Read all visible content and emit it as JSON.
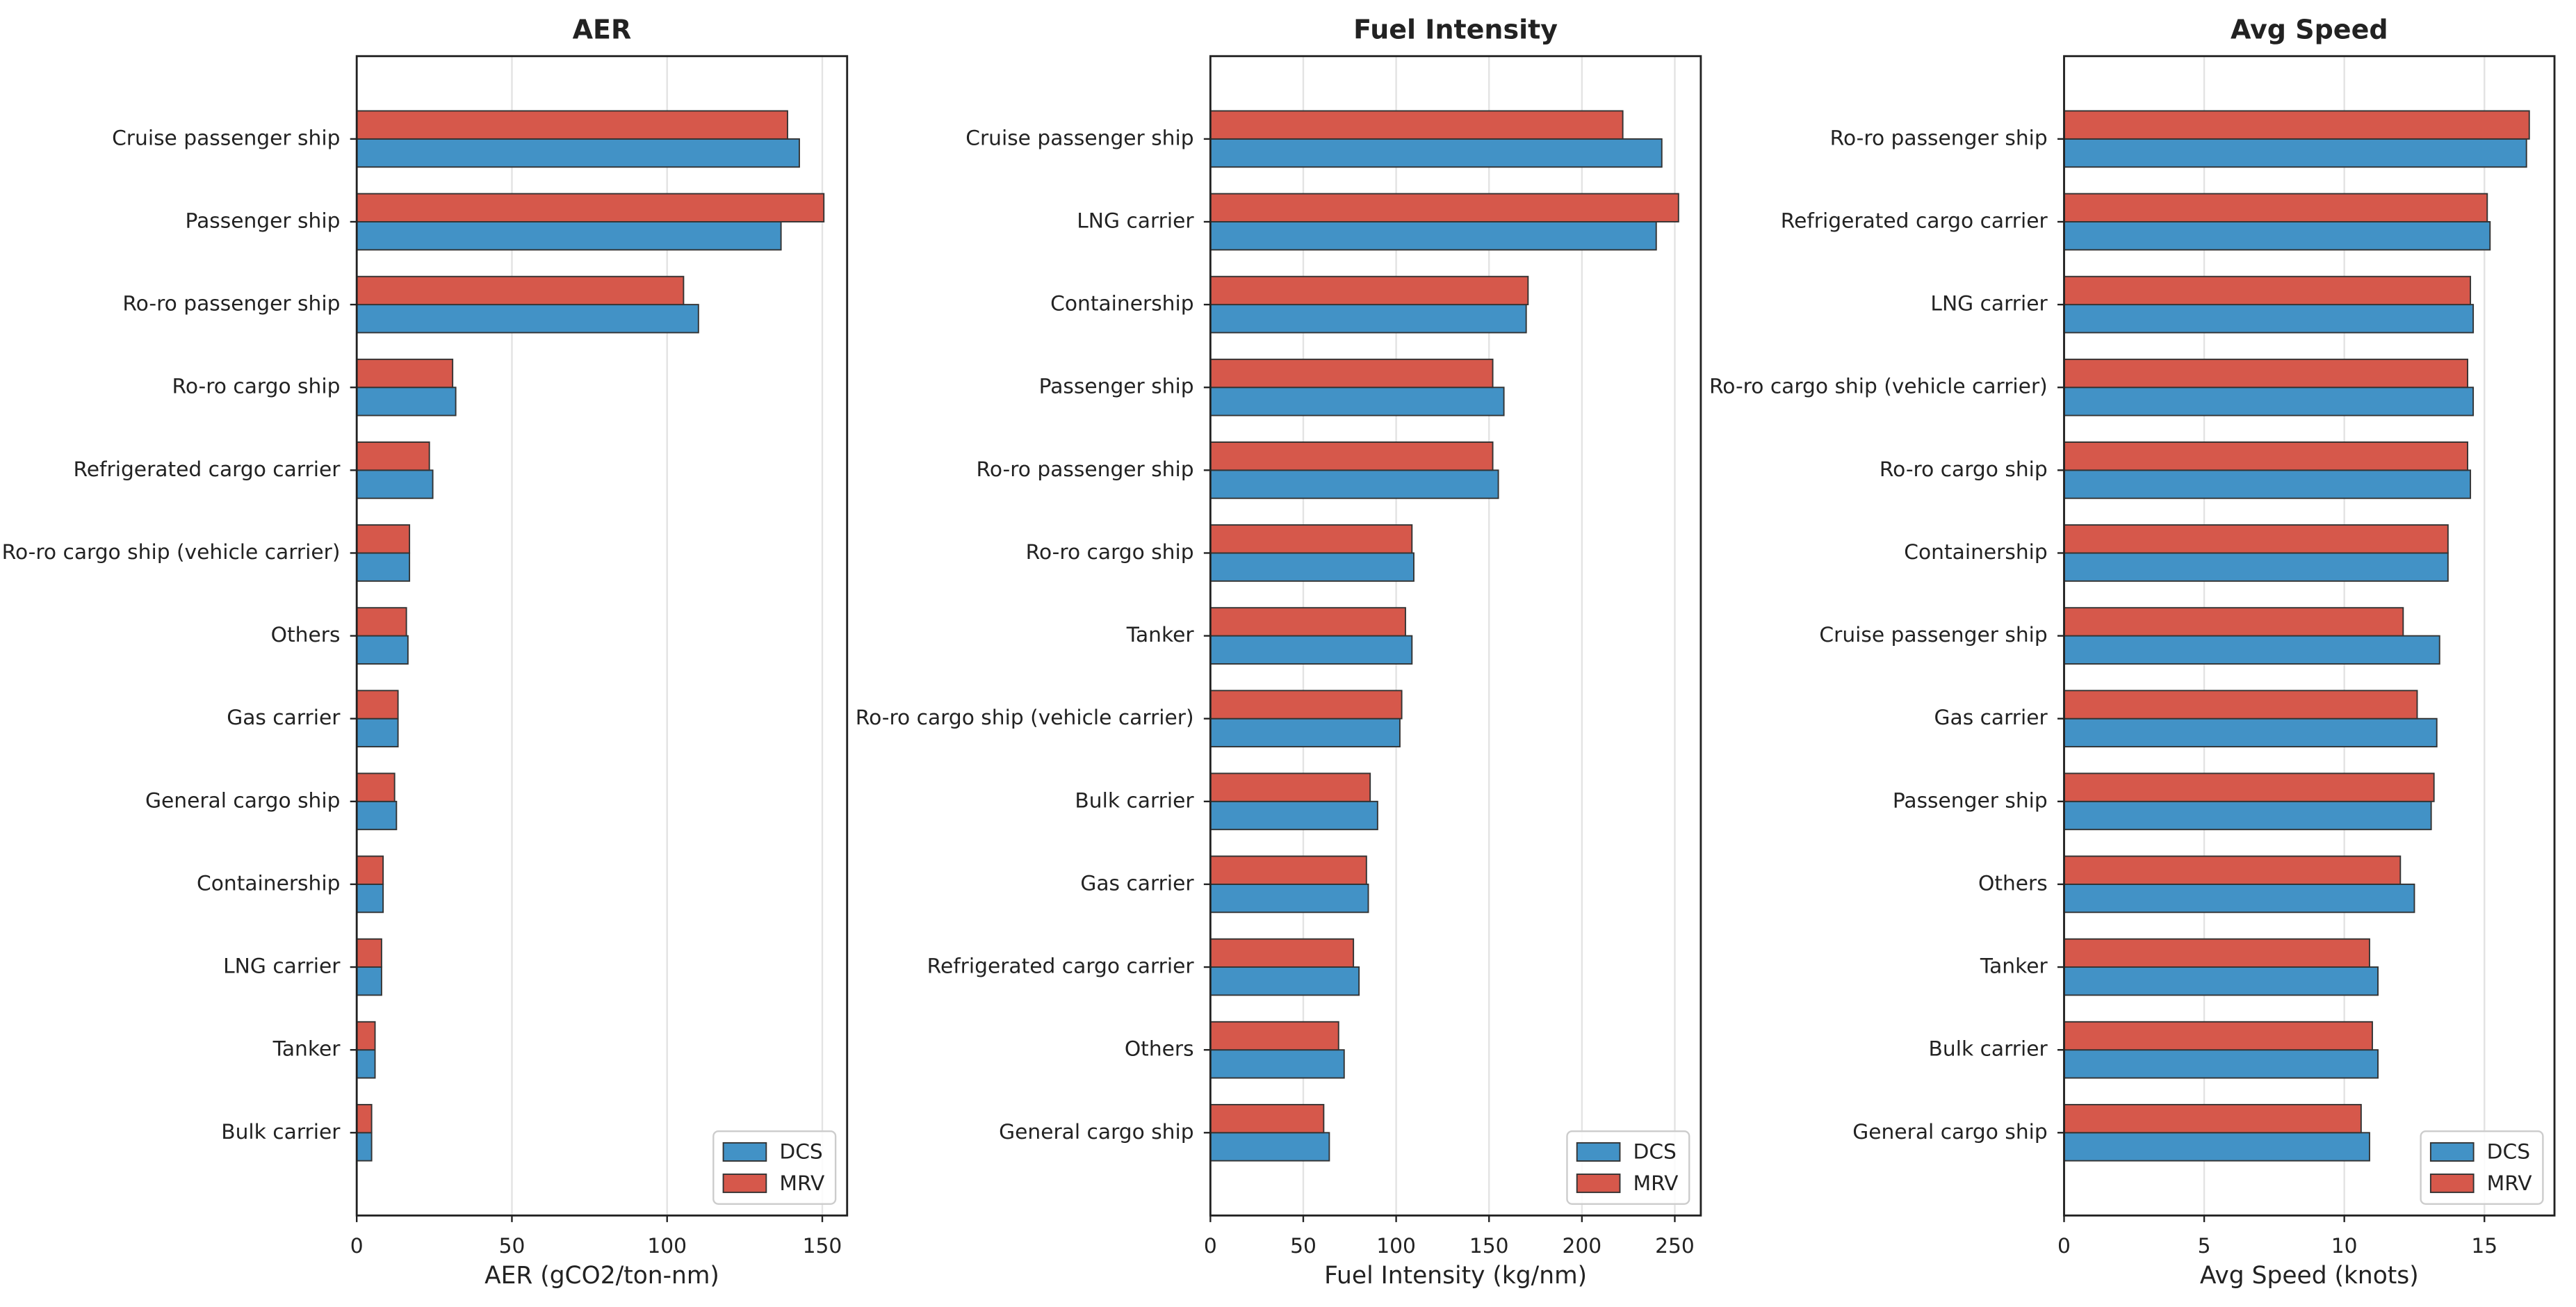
{
  "chart_data": [
    {
      "type": "bar",
      "orientation": "horizontal",
      "title": "AER",
      "xlabel": "AER (gCO2/ton-nm)",
      "categories": [
        "Cruise passenger ship",
        "Passenger ship",
        "Ro-ro passenger ship",
        "Ro-ro cargo ship",
        "Refrigerated cargo carrier",
        "Ro-ro cargo ship (vehicle carrier)",
        "Others",
        "Gas carrier",
        "General cargo ship",
        "Containership",
        "LNG carrier",
        "Tanker",
        "Bulk carrier"
      ],
      "series": [
        {
          "name": "DCS",
          "color": "#4292c6",
          "values": [
            142.6,
            136.7,
            110.1,
            31.9,
            24.5,
            17.0,
            16.5,
            13.3,
            12.8,
            8.5,
            8.0,
            5.9,
            4.8
          ]
        },
        {
          "name": "MRV",
          "color": "#d6584b",
          "values": [
            138.8,
            150.5,
            105.3,
            30.9,
            23.4,
            17.0,
            16.0,
            13.3,
            12.2,
            8.5,
            8.0,
            5.9,
            4.8
          ]
        }
      ],
      "xlim": [
        0,
        158
      ],
      "xticks": [
        0,
        50,
        100,
        150
      ],
      "grid": true,
      "legend": "lower right"
    },
    {
      "type": "bar",
      "orientation": "horizontal",
      "title": "Fuel Intensity",
      "xlabel": "Fuel Intensity (kg/nm)",
      "categories": [
        "Cruise passenger ship",
        "LNG carrier",
        "Containership",
        "Passenger ship",
        "Ro-ro passenger ship",
        "Ro-ro cargo ship",
        "Tanker",
        "Ro-ro cargo ship (vehicle carrier)",
        "Bulk carrier",
        "Gas carrier",
        "Refrigerated cargo carrier",
        "Others",
        "General cargo ship"
      ],
      "series": [
        {
          "name": "DCS",
          "color": "#4292c6",
          "values": [
            243,
            240,
            170,
            158,
            155,
            109.5,
            108.5,
            102,
            90,
            85,
            80,
            72,
            64
          ]
        },
        {
          "name": "MRV",
          "color": "#d6584b",
          "values": [
            222,
            252,
            171,
            152,
            152,
            108.5,
            105,
            103,
            86,
            84,
            77,
            69,
            61
          ]
        }
      ],
      "xlim": [
        0,
        264
      ],
      "xticks": [
        0,
        50,
        100,
        150,
        200,
        250
      ],
      "grid": true,
      "legend": "lower right"
    },
    {
      "type": "bar",
      "orientation": "horizontal",
      "title": "Avg Speed",
      "xlabel": "Avg Speed (knots)",
      "categories": [
        "Ro-ro passenger ship",
        "Refrigerated cargo carrier",
        "LNG carrier",
        "Ro-ro cargo ship (vehicle carrier)",
        "Ro-ro cargo ship",
        "Containership",
        "Cruise passenger ship",
        "Gas carrier",
        "Passenger ship",
        "Others",
        "Tanker",
        "Bulk carrier",
        "General cargo ship"
      ],
      "series": [
        {
          "name": "DCS",
          "color": "#4292c6",
          "values": [
            16.5,
            15.2,
            14.6,
            14.6,
            14.5,
            13.7,
            13.4,
            13.3,
            13.1,
            12.5,
            11.2,
            11.2,
            10.9
          ]
        },
        {
          "name": "MRV",
          "color": "#d6584b",
          "values": [
            16.6,
            15.1,
            14.5,
            14.4,
            14.4,
            13.7,
            12.1,
            12.6,
            13.2,
            12.0,
            10.9,
            11.0,
            10.6
          ]
        }
      ],
      "xlim": [
        0,
        17.5
      ],
      "xticks": [
        0,
        5,
        10,
        15
      ],
      "grid": true,
      "legend": "lower right"
    }
  ]
}
